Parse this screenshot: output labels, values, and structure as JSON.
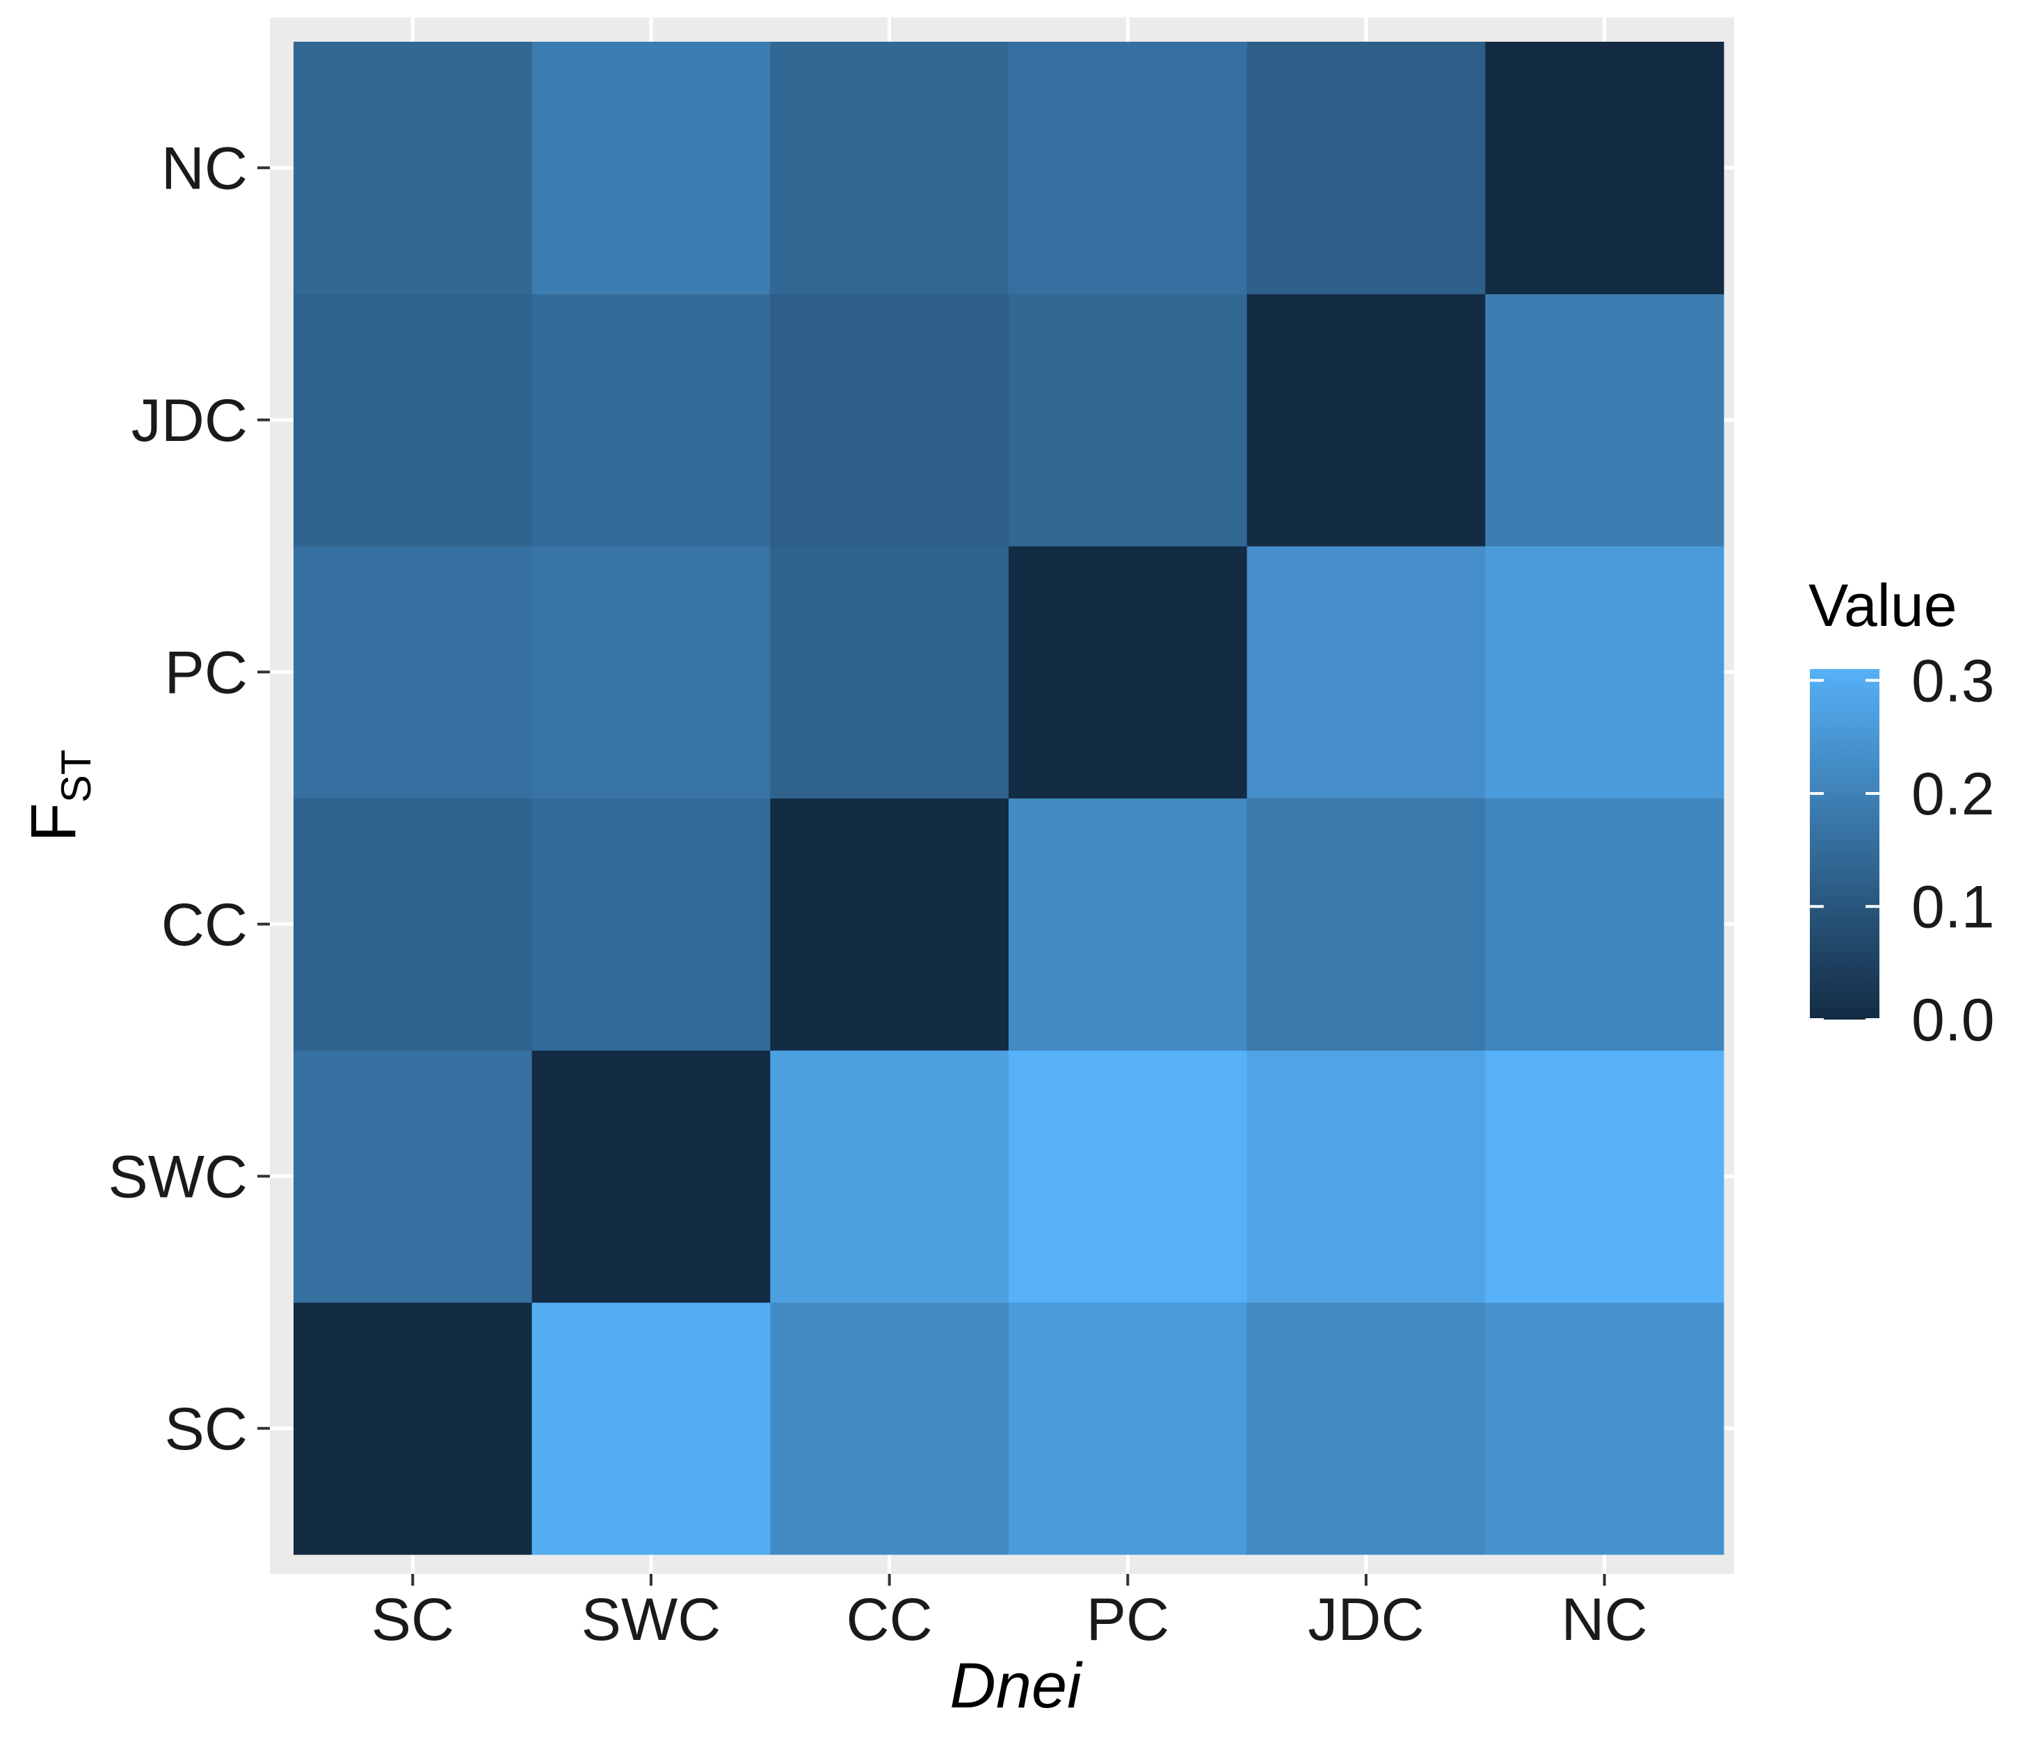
{
  "chart_data": {
    "type": "heatmap",
    "title": "",
    "x_categories": [
      "SC",
      "SWC",
      "CC",
      "PC",
      "JDC",
      "NC"
    ],
    "y_categories": [
      "SC",
      "SWC",
      "CC",
      "PC",
      "JDC",
      "NC"
    ],
    "xlabel": "Dnei",
    "ylabel": {
      "main": "F",
      "subscript": "ST"
    },
    "values": [
      [
        0.0,
        0.3,
        0.22,
        0.26,
        0.22,
        0.24
      ],
      [
        0.16,
        0.0,
        0.27,
        0.31,
        0.28,
        0.31
      ],
      [
        0.13,
        0.15,
        0.0,
        0.22,
        0.18,
        0.21
      ],
      [
        0.16,
        0.17,
        0.13,
        0.0,
        0.23,
        0.26
      ],
      [
        0.13,
        0.15,
        0.12,
        0.14,
        0.0,
        0.19
      ],
      [
        0.14,
        0.19,
        0.14,
        0.16,
        0.12,
        0.0
      ]
    ],
    "value_orientation": "values[row][col], row index follows y_categories from bottom (SC) to top (NC), col index follows x_categories",
    "legend": {
      "title": "Value",
      "ticks": [
        0.0,
        0.1,
        0.2,
        0.3
      ],
      "tick_labels": [
        "0.0",
        "0.1",
        "0.2",
        "0.3"
      ],
      "range": [
        0,
        0.31
      ],
      "placement": "right"
    },
    "colors": {
      "low": "#132b43",
      "high": "#56b1f7",
      "panel_bg": "#ebebeb",
      "grid": "#ffffff"
    }
  }
}
